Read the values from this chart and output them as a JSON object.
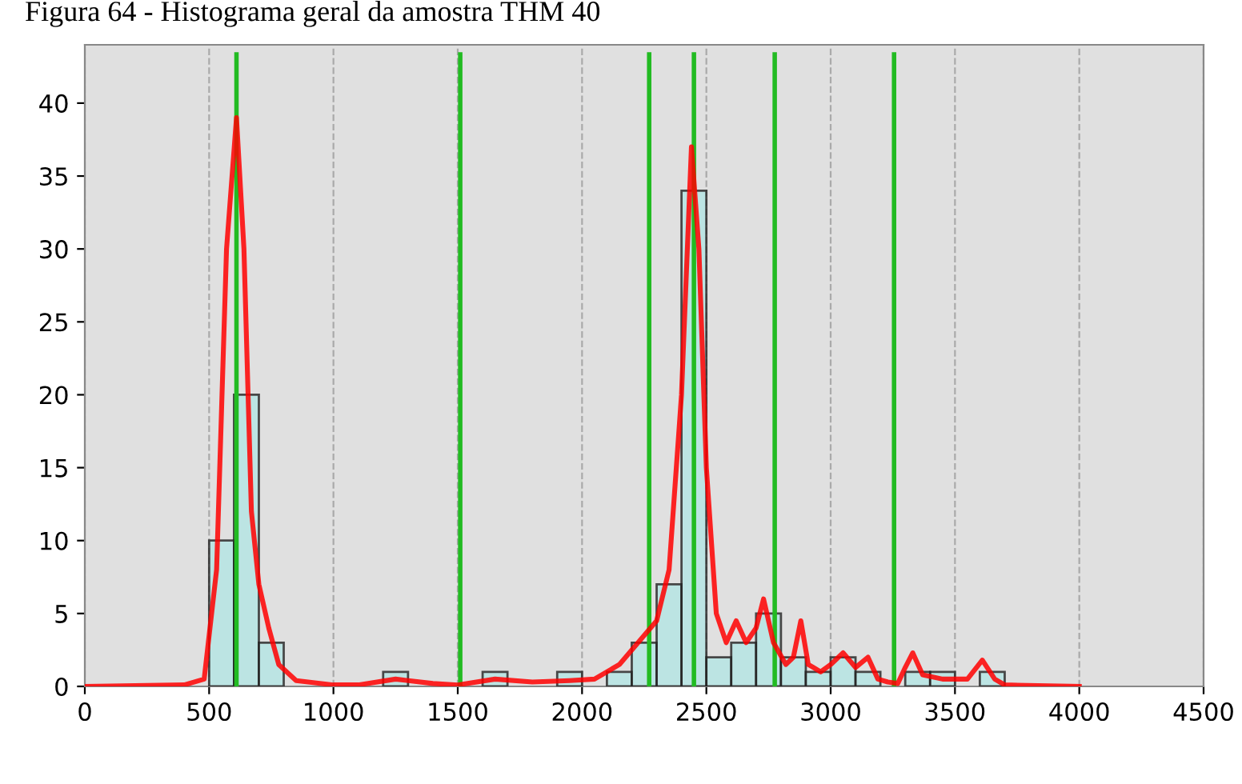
{
  "chart_data": {
    "type": "histogram",
    "title": "Figura 64 - Histograma geral da amostra THM 40",
    "bins": [
      500,
      600,
      700,
      800,
      900,
      1000,
      1100,
      1200,
      1300,
      1400,
      1500,
      1600,
      1700,
      1800,
      1900,
      2000,
      2100,
      2200,
      2300,
      2400,
      2500,
      2600,
      2700,
      2800,
      2900,
      3000,
      3100,
      3200,
      3300,
      3400,
      3500,
      3600,
      3700
    ],
    "values": [
      10,
      20,
      3,
      0,
      0,
      0,
      0,
      1,
      0,
      0,
      0,
      1,
      0,
      0,
      1,
      0,
      1,
      3,
      7,
      34,
      2,
      3,
      5,
      2,
      1,
      2,
      1,
      0,
      1,
      1,
      0,
      1
    ],
    "color": "#b4e6e4",
    "series": [
      {
        "type": "line",
        "color": "#ff0000",
        "x": [
          0,
          400,
          480,
          530,
          570,
          610,
          640,
          670,
          700,
          740,
          780,
          850,
          1000,
          1100,
          1250,
          1400,
          1500,
          1650,
          1800,
          1950,
          2050,
          2150,
          2250,
          2300,
          2350,
          2400,
          2440,
          2470,
          2500,
          2540,
          2580,
          2620,
          2660,
          2700,
          2730,
          2770,
          2820,
          2850,
          2880,
          2910,
          2960,
          3000,
          3050,
          3100,
          3150,
          3190,
          3230,
          3270,
          3300,
          3330,
          3370,
          3450,
          3550,
          3610,
          3660,
          3700,
          4000
        ],
        "values": [
          0,
          0.1,
          0.5,
          8,
          30,
          39,
          30,
          12,
          7,
          4,
          1.5,
          0.4,
          0.1,
          0.1,
          0.5,
          0.2,
          0.1,
          0.5,
          0.3,
          0.4,
          0.5,
          1.5,
          3.5,
          4.5,
          8,
          20,
          37,
          30,
          15,
          5,
          3,
          4.5,
          3,
          4,
          6,
          3,
          1.5,
          2,
          4.5,
          1.5,
          1,
          1.5,
          2.3,
          1.3,
          2,
          0.5,
          0.3,
          0.2,
          1.3,
          2.3,
          0.8,
          0.5,
          0.5,
          1.8,
          0.5,
          0.1,
          0
        ]
      }
    ],
    "ref_lines": [
      {
        "axis": "x",
        "value": 610,
        "color": "#22bb22"
      },
      {
        "axis": "x",
        "value": 1510,
        "color": "#22bb22"
      },
      {
        "axis": "x",
        "value": 2270,
        "color": "#22bb22"
      },
      {
        "axis": "x",
        "value": 2450,
        "color": "#22bb22"
      },
      {
        "axis": "x",
        "value": 2775,
        "color": "#22bb22"
      },
      {
        "axis": "x",
        "value": 3255,
        "color": "#22bb22"
      }
    ],
    "xlim": [
      0,
      4500
    ],
    "xticks": [
      0,
      500,
      1000,
      1500,
      2000,
      2500,
      3000,
      3500,
      4000,
      4500
    ],
    "ylim": [
      0,
      44
    ],
    "yticks": [
      0,
      5,
      10,
      15,
      20,
      25,
      30,
      35,
      40
    ],
    "grid": "x"
  }
}
